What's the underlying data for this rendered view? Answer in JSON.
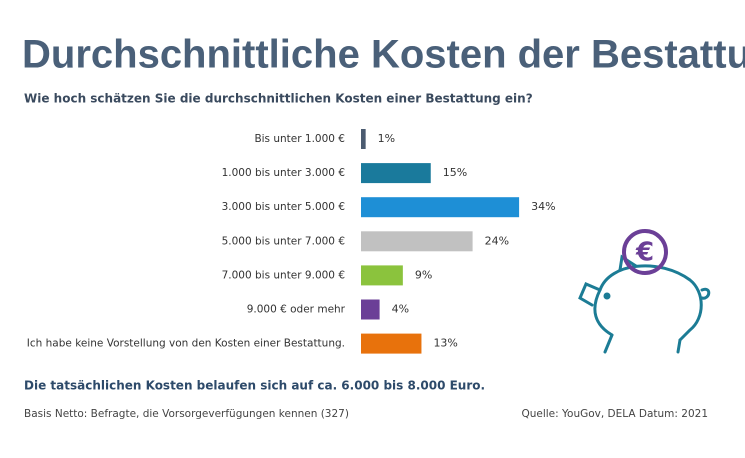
{
  "chart_data": {
    "type": "bar",
    "orientation": "horizontal",
    "title": "Durchschnittliche Kosten der Bestattung",
    "subtitle": "Wie hoch schätzen Sie die durchschnittlichen Kosten einer Bestattung ein?",
    "categories": [
      "Bis unter 1.000 €",
      "1.000 bis unter 3.000 €",
      "3.000 bis unter 5.000 €",
      "5.000 bis unter 7.000 €",
      "7.000 bis unter 9.000 €",
      "9.000 € oder mehr",
      "Ich habe keine Vorstellung von den Kosten einer Bestattung."
    ],
    "values": [
      1,
      15,
      34,
      24,
      9,
      4,
      13
    ],
    "value_labels": [
      "1%",
      "15%",
      "34%",
      "24%",
      "9%",
      "4%",
      "13%"
    ],
    "colors": [
      "#4b5b70",
      "#1a7a9c",
      "#1e8fd6",
      "#c1c1c1",
      "#8bc33d",
      "#6b3f97",
      "#e8720c"
    ],
    "annotation": "Die tatsächlichen Kosten belaufen sich auf ca. 6.000 bis 8.000 Euro.",
    "footnote": "Basis Netto: Befragte, die Vorsorgeverfügungen kennen (327)",
    "source": "Quelle: YouGov, DELA Datum: 2021"
  },
  "icon_label": "€"
}
